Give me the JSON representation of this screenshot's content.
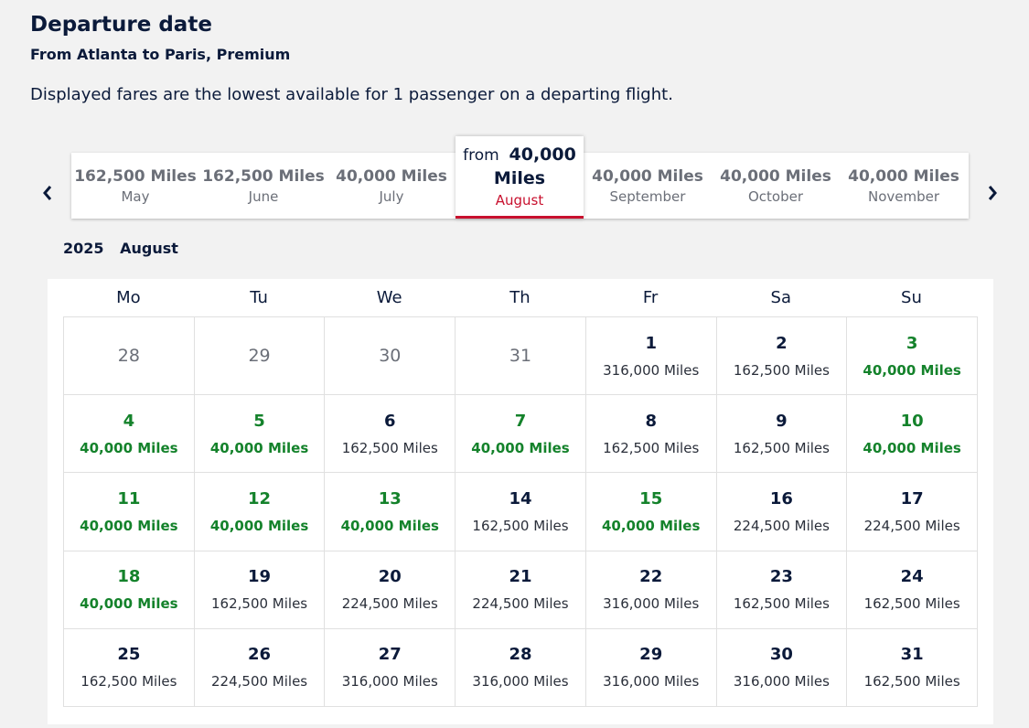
{
  "header": {
    "title": "Departure date",
    "subtitle": "From Atlanta to Paris, Premium",
    "note": "Displayed fares are the lowest available for 1 passenger on a departing flight."
  },
  "months": [
    {
      "price": "162,500 Miles",
      "name": "May"
    },
    {
      "price": "162,500 Miles",
      "name": "June"
    },
    {
      "price": "40,000 Miles",
      "name": "July"
    },
    {
      "from": "from",
      "price_top": "40,000",
      "price_bottom": "Miles",
      "name": "August",
      "active": true
    },
    {
      "price": "40,000 Miles",
      "name": "September"
    },
    {
      "price": "40,000 Miles",
      "name": "October"
    },
    {
      "price": "40,000 Miles",
      "name": "November"
    }
  ],
  "calendar": {
    "year": "2025",
    "month": "August",
    "weekdays": [
      "Mo",
      "Tu",
      "We",
      "Th",
      "Fr",
      "Sa",
      "Su"
    ],
    "days": [
      {
        "num": "28",
        "price": "",
        "outside": true
      },
      {
        "num": "29",
        "price": "",
        "outside": true
      },
      {
        "num": "30",
        "price": "",
        "outside": true
      },
      {
        "num": "31",
        "price": "",
        "outside": true
      },
      {
        "num": "1",
        "price": "316,000 Miles"
      },
      {
        "num": "2",
        "price": "162,500 Miles"
      },
      {
        "num": "3",
        "price": "40,000 Miles",
        "cheap": true
      },
      {
        "num": "4",
        "price": "40,000 Miles",
        "cheap": true
      },
      {
        "num": "5",
        "price": "40,000 Miles",
        "cheap": true
      },
      {
        "num": "6",
        "price": "162,500 Miles"
      },
      {
        "num": "7",
        "price": "40,000 Miles",
        "cheap": true
      },
      {
        "num": "8",
        "price": "162,500 Miles"
      },
      {
        "num": "9",
        "price": "162,500 Miles"
      },
      {
        "num": "10",
        "price": "40,000 Miles",
        "cheap": true
      },
      {
        "num": "11",
        "price": "40,000 Miles",
        "cheap": true
      },
      {
        "num": "12",
        "price": "40,000 Miles",
        "cheap": true
      },
      {
        "num": "13",
        "price": "40,000 Miles",
        "cheap": true
      },
      {
        "num": "14",
        "price": "162,500 Miles"
      },
      {
        "num": "15",
        "price": "40,000 Miles",
        "cheap": true
      },
      {
        "num": "16",
        "price": "224,500 Miles"
      },
      {
        "num": "17",
        "price": "224,500 Miles"
      },
      {
        "num": "18",
        "price": "40,000 Miles",
        "cheap": true
      },
      {
        "num": "19",
        "price": "162,500 Miles"
      },
      {
        "num": "20",
        "price": "224,500 Miles"
      },
      {
        "num": "21",
        "price": "224,500 Miles"
      },
      {
        "num": "22",
        "price": "316,000 Miles"
      },
      {
        "num": "23",
        "price": "162,500 Miles"
      },
      {
        "num": "24",
        "price": "162,500 Miles"
      },
      {
        "num": "25",
        "price": "162,500 Miles"
      },
      {
        "num": "26",
        "price": "224,500 Miles"
      },
      {
        "num": "27",
        "price": "316,000 Miles"
      },
      {
        "num": "28",
        "price": "316,000 Miles"
      },
      {
        "num": "29",
        "price": "316,000 Miles"
      },
      {
        "num": "30",
        "price": "316,000 Miles"
      },
      {
        "num": "31",
        "price": "162,500 Miles"
      }
    ]
  },
  "icons": {
    "prev": "chevron-left-icon",
    "next": "chevron-right-icon"
  },
  "colors": {
    "cheap": "#14822b",
    "accent": "#c8102e",
    "text": "#0b1a3a"
  }
}
